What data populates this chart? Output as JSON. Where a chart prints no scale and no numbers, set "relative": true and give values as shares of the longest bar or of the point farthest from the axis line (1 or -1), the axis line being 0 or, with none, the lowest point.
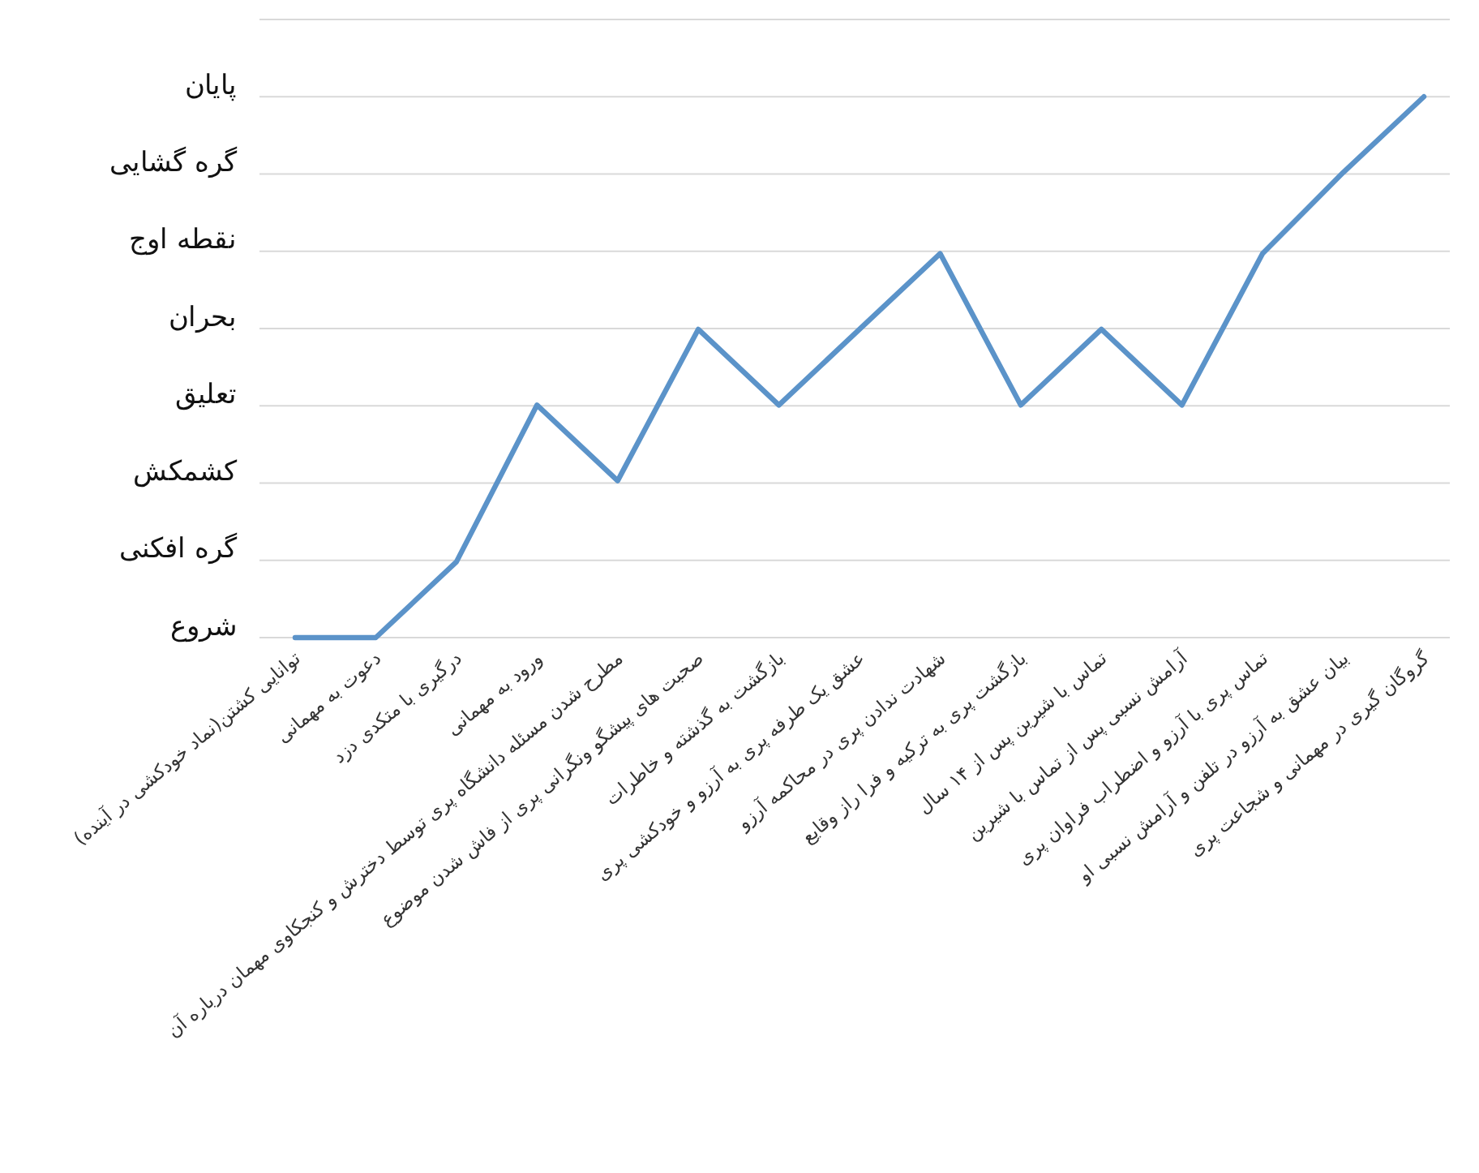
{
  "chart_data": {
    "type": "line",
    "categories": [
      "توانایی کشتن(نماد خودکشی در آینده)",
      "دعوت به مهمانی",
      "درگیری با متکدی دزد",
      "ورود به مهمانی",
      "مطرح شدن مسئله دانشگاه پری توسط دخترش و کنجکاوی مهمان درباره آن",
      "صحبت های پیشگو ونگرانی پری از فاش شدن موضوع",
      "بازگشت به گذشته و خاطرات",
      "عشق یک طرفه پری به آرزو و خودکشی پری",
      "شهادت ندادن پری در محاکمه آرزو",
      "بازگشت پری به ترکیه و فرا راز وقایع",
      "تماس با شیرین پس از ۱۴ سال",
      "آرامش نسبی پس از تماس با شیرین",
      "تماس پری با آرزو و اضطراب فراوان پری",
      "بیان عشق به آرزو در تلفن و آرامش نسبی او",
      "گروگان گیری در مهمانی و شجاعت پری"
    ],
    "series": [
      {
        "color": "#5b93c9",
        "values": [
          0,
          0,
          0.14,
          0.43,
          0.29,
          0.57,
          0.43,
          0.57,
          0.71,
          0.43,
          0.57,
          0.43,
          0.71,
          0.86,
          1
        ]
      }
    ],
    "relative": true,
    "y_categories": [
      null,
      "پایان",
      "گره گشایی",
      "نقطه اوج",
      "بحران",
      "تعلیق",
      "کشمکش",
      "گره افکنی",
      "شروع"
    ],
    "grid": "y",
    "marker": "none",
    "line_style": "solid"
  }
}
